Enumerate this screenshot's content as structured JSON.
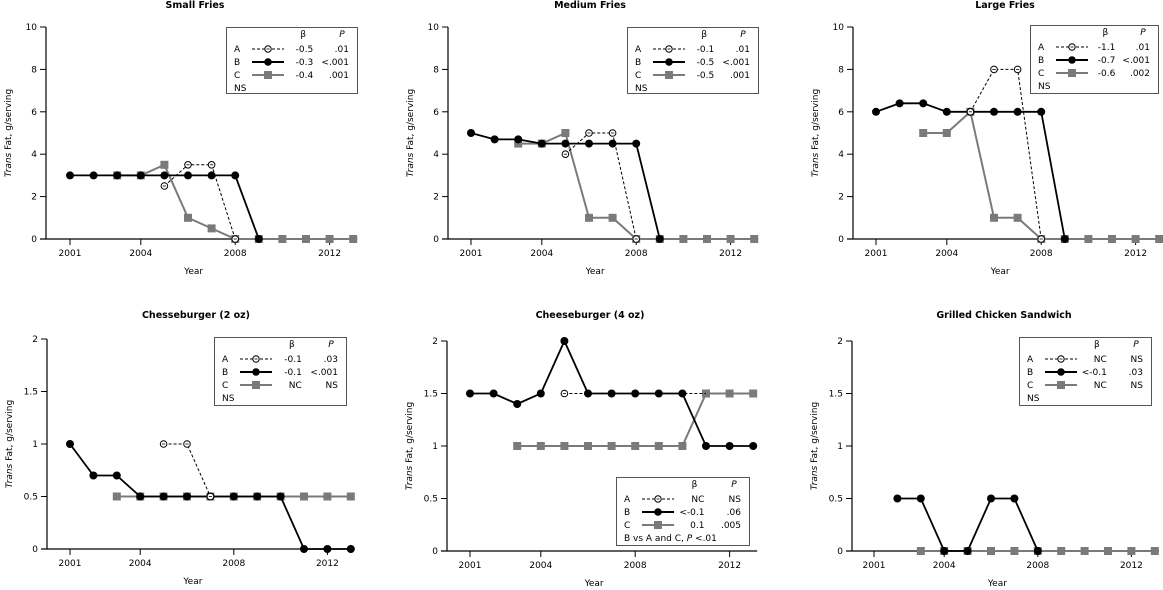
{
  "chart_data": [
    {
      "type": "line",
      "title": "Small Fries",
      "xlabel": "Year",
      "ylabel_italic": "Trans",
      "ylabel": "Fat, g/serving",
      "xlim": [
        2001,
        2013
      ],
      "xticks": [
        2001,
        2004,
        2008,
        2012
      ],
      "ylim": [
        0,
        10
      ],
      "yticks": [
        0,
        2,
        4,
        6,
        8,
        10
      ],
      "grid": false,
      "legend_position": "top-right",
      "legend": {
        "header_beta": "β",
        "header_p": "P",
        "rows": [
          {
            "label": "A",
            "beta": "-0.5",
            "p": ".01"
          },
          {
            "label": "B",
            "beta": "-0.3",
            "p": "<.001"
          },
          {
            "label": "C",
            "beta": "-0.4",
            "p": ".001"
          }
        ],
        "note": "NS",
        "note_italic": ""
      },
      "series": [
        {
          "name": "C",
          "x": [
            2003,
            2004,
            2005,
            2006,
            2007,
            2008,
            2009,
            2010,
            2011,
            2012,
            2013
          ],
          "y": [
            3,
            3,
            3.5,
            1,
            0.5,
            0,
            0,
            0,
            0,
            0,
            0
          ]
        },
        {
          "name": "B",
          "x": [
            2001,
            2002,
            2003,
            2004,
            2005,
            2006,
            2007,
            2008,
            2009
          ],
          "y": [
            3,
            3,
            3,
            3,
            3,
            3,
            3,
            3,
            0
          ]
        },
        {
          "name": "A",
          "x": [
            2005,
            2006,
            2007,
            2008
          ],
          "y": [
            2.5,
            3.5,
            3.5,
            0
          ]
        }
      ]
    },
    {
      "type": "line",
      "title": "Medium Fries",
      "xlabel": "Year",
      "ylabel_italic": "Trans",
      "ylabel": "Fat, g/serving",
      "xlim": [
        2001,
        2013
      ],
      "xticks": [
        2001,
        2004,
        2008,
        2012
      ],
      "ylim": [
        0,
        10
      ],
      "yticks": [
        0,
        2,
        4,
        6,
        8,
        10
      ],
      "grid": false,
      "legend_position": "top-right",
      "legend": {
        "header_beta": "β",
        "header_p": "P",
        "rows": [
          {
            "label": "A",
            "beta": "-0.1",
            "p": ".01"
          },
          {
            "label": "B",
            "beta": "-0.5",
            "p": "<.001"
          },
          {
            "label": "C",
            "beta": "-0.5",
            "p": ".001"
          }
        ],
        "note": "NS",
        "note_italic": ""
      },
      "series": [
        {
          "name": "C",
          "x": [
            2003,
            2004,
            2005,
            2006,
            2007,
            2008,
            2009,
            2010,
            2011,
            2012,
            2013
          ],
          "y": [
            4.5,
            4.5,
            5,
            1,
            1,
            0,
            0,
            0,
            0,
            0,
            0
          ]
        },
        {
          "name": "B",
          "x": [
            2001,
            2002,
            2003,
            2004,
            2005,
            2006,
            2007,
            2008,
            2009
          ],
          "y": [
            5,
            4.7,
            4.7,
            4.5,
            4.5,
            4.5,
            4.5,
            4.5,
            0
          ]
        },
        {
          "name": "A",
          "x": [
            2005,
            2006,
            2007,
            2008
          ],
          "y": [
            4,
            5,
            5,
            0
          ]
        }
      ]
    },
    {
      "type": "line",
      "title": "Large Fries",
      "xlabel": "Year",
      "ylabel_italic": "Trans",
      "ylabel": "Fat, g/serving",
      "xlim": [
        2001,
        2013
      ],
      "xticks": [
        2001,
        2004,
        2008,
        2012
      ],
      "ylim": [
        0,
        10
      ],
      "yticks": [
        0,
        2,
        4,
        6,
        8,
        10
      ],
      "grid": false,
      "legend_position": "top-right",
      "legend": {
        "header_beta": "β",
        "header_p": "P",
        "rows": [
          {
            "label": "A",
            "beta": "-1.1",
            "p": ".01"
          },
          {
            "label": "B",
            "beta": "-0.7",
            "p": "<.001"
          },
          {
            "label": "C",
            "beta": "-0.6",
            "p": ".002"
          }
        ],
        "note": "NS",
        "note_italic": ""
      },
      "series": [
        {
          "name": "C",
          "x": [
            2003,
            2004,
            2005,
            2006,
            2007,
            2008,
            2009,
            2010,
            2011,
            2012,
            2013
          ],
          "y": [
            5,
            5,
            6,
            1,
            1,
            0,
            0,
            0,
            0,
            0,
            0
          ]
        },
        {
          "name": "B",
          "x": [
            2001,
            2002,
            2003,
            2004,
            2005,
            2006,
            2007,
            2008,
            2009
          ],
          "y": [
            6,
            6.4,
            6.4,
            6,
            6,
            6,
            6,
            6,
            0
          ]
        },
        {
          "name": "A",
          "x": [
            2005,
            2006,
            2007,
            2008
          ],
          "y": [
            6,
            8,
            8,
            0
          ]
        }
      ]
    },
    {
      "type": "line",
      "title": "Chesseburger (2 oz)",
      "xlabel": "Year",
      "ylabel_italic": "Trans",
      "ylabel": "Fat, g/serving",
      "xlim": [
        2001,
        2013
      ],
      "xticks": [
        2001,
        2004,
        2008,
        2012
      ],
      "ylim": [
        0,
        2
      ],
      "yticks": [
        0,
        0.5,
        1,
        1.5,
        2
      ],
      "grid": false,
      "legend_position": "top-right",
      "legend": {
        "header_beta": "β",
        "header_p": "P",
        "rows": [
          {
            "label": "A",
            "beta": "-0.1",
            "p": ".03"
          },
          {
            "label": "B",
            "beta": "-0.1",
            "p": "<.001"
          },
          {
            "label": "C",
            "beta": "NC",
            "p": "NS"
          }
        ],
        "note": "NS",
        "note_italic": ""
      },
      "series": [
        {
          "name": "C",
          "x": [
            2003,
            2004,
            2005,
            2006,
            2007,
            2008,
            2009,
            2010,
            2011,
            2012,
            2013
          ],
          "y": [
            0.5,
            0.5,
            0.5,
            0.5,
            0.5,
            0.5,
            0.5,
            0.5,
            0.5,
            0.5,
            0.5
          ]
        },
        {
          "name": "B",
          "x": [
            2001,
            2002,
            2003,
            2004,
            2005,
            2006,
            2007,
            2008,
            2009,
            2010,
            2011,
            2012,
            2013
          ],
          "y": [
            1,
            0.7,
            0.7,
            0.5,
            0.5,
            0.5,
            0.5,
            0.5,
            0.5,
            0.5,
            0,
            0,
            0
          ]
        },
        {
          "name": "A",
          "x": [
            2005,
            2006,
            2007
          ],
          "y": [
            1,
            1,
            0.5
          ]
        }
      ]
    },
    {
      "type": "line",
      "title": "Cheeseburger (4 oz)",
      "xlabel": "Year",
      "ylabel_italic": "Trans",
      "ylabel": "Fat, g/serving",
      "xlim": [
        2001,
        2013
      ],
      "xticks": [
        2001,
        2004,
        2008,
        2012
      ],
      "ylim": [
        0,
        2
      ],
      "yticks": [
        0,
        0.5,
        1,
        1.5,
        2
      ],
      "grid": false,
      "legend_position": "bottom-right",
      "legend": {
        "header_beta": "β",
        "header_p": "P",
        "rows": [
          {
            "label": "A",
            "beta": "NC",
            "p": "NS"
          },
          {
            "label": "B",
            "beta": "<-0.1",
            "p": ".06"
          },
          {
            "label": "C",
            "beta": "0.1",
            "p": ".005"
          }
        ],
        "note": "B vs A and C, ",
        "note_italic": "P",
        "note_tail": " <.01"
      },
      "series": [
        {
          "name": "C",
          "x": [
            2003,
            2004,
            2005,
            2006,
            2007,
            2008,
            2009,
            2010,
            2011,
            2012,
            2013
          ],
          "y": [
            1,
            1,
            1,
            1,
            1,
            1,
            1,
            1,
            1.5,
            1.5,
            1.5
          ]
        },
        {
          "name": "A",
          "x": [
            2005,
            2006,
            2007,
            2008,
            2009,
            2010,
            2011
          ],
          "y": [
            1.5,
            1.5,
            1.5,
            1.5,
            1.5,
            1.5,
            1.5
          ],
          "marker_indices": [
            0
          ]
        },
        {
          "name": "B",
          "x": [
            2001,
            2002,
            2003,
            2004,
            2005,
            2006,
            2007,
            2008,
            2009,
            2010,
            2011,
            2012,
            2013
          ],
          "y": [
            1.5,
            1.5,
            1.4,
            1.5,
            2,
            1.5,
            1.5,
            1.5,
            1.5,
            1.5,
            1,
            1,
            1
          ]
        }
      ]
    },
    {
      "type": "line",
      "title": "Grilled Chicken Sandwich",
      "xlabel": "Year",
      "ylabel_italic": "Trans",
      "ylabel": "Fat, g/serving",
      "xlim": [
        2001,
        2013
      ],
      "xticks": [
        2001,
        2004,
        2008,
        2012
      ],
      "ylim": [
        0,
        2
      ],
      "yticks": [
        0,
        0.5,
        1,
        1.5,
        2
      ],
      "grid": false,
      "legend_position": "top-right",
      "legend": {
        "header_beta": "β",
        "header_p": "P",
        "rows": [
          {
            "label": "A",
            "beta": "NC",
            "p": "NS"
          },
          {
            "label": "B",
            "beta": "<-0.1",
            "p": ".03"
          },
          {
            "label": "C",
            "beta": "NC",
            "p": "NS"
          }
        ],
        "note": "NS",
        "note_italic": ""
      },
      "series": [
        {
          "name": "C",
          "x": [
            2003,
            2004,
            2005,
            2006,
            2007,
            2008,
            2009,
            2010,
            2011,
            2012,
            2013
          ],
          "y": [
            0,
            0,
            0,
            0,
            0,
            0,
            0,
            0,
            0,
            0,
            0
          ]
        },
        {
          "name": "B",
          "x": [
            2002,
            2003,
            2004,
            2005,
            2006,
            2007,
            2008
          ],
          "y": [
            0.5,
            0.5,
            0,
            0,
            0.5,
            0.5,
            0
          ]
        }
      ]
    }
  ],
  "styles": {
    "A": {
      "color": "#000000",
      "dashed": true,
      "marker": "open-circle"
    },
    "B": {
      "color": "#000000",
      "dashed": false,
      "marker": "filled-circle"
    },
    "C": {
      "color": "#7a7a7a",
      "dashed": false,
      "marker": "square"
    }
  }
}
